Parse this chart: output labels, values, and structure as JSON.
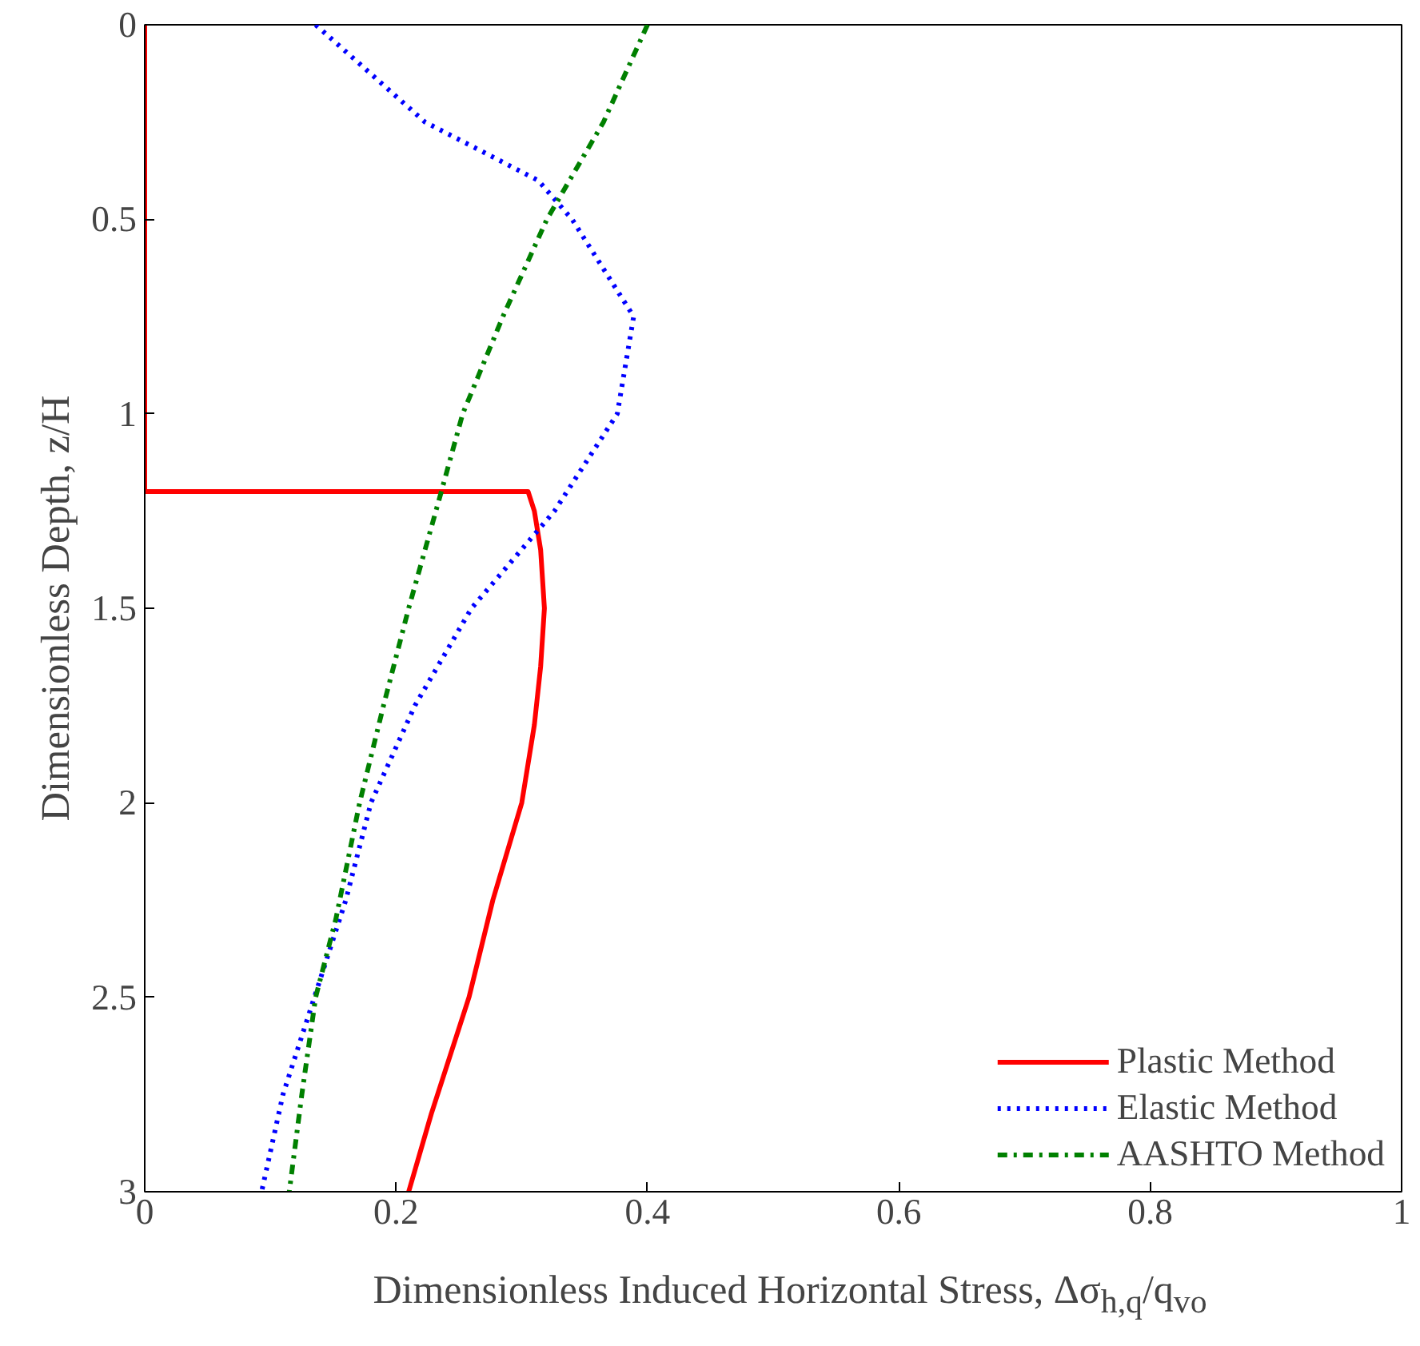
{
  "chart_data": {
    "type": "line",
    "xlabel": "Dimensionless Induced Horizontal Stress, Δσ$_{h,q}$/q$_{vo}$",
    "ylabel": "Dimensionless Depth, z/H",
    "xlim": [
      0,
      1
    ],
    "xticks": [
      0,
      0.2,
      0.4,
      0.6,
      0.8,
      1
    ],
    "ylim": [
      3,
      0
    ],
    "yticks": [
      0,
      0.5,
      1,
      1.5,
      2,
      2.5,
      3
    ],
    "legend": "bottom right",
    "grid": false,
    "series": [
      {
        "name": "Plastic Method",
        "color": "#ff0000",
        "line_style": "solid",
        "x": [
          0,
          0,
          0.305,
          0.31,
          0.315,
          0.318,
          0.315,
          0.31,
          0.3,
          0.277,
          0.258,
          0.228,
          0.21
        ],
        "values": [
          0,
          1.2,
          1.2,
          1.25,
          1.35,
          1.5,
          1.65,
          1.8,
          2.0,
          2.25,
          2.5,
          2.8,
          3.0
        ]
      },
      {
        "name": "Elastic Method",
        "color": "#0000ff",
        "line_style": "dotted",
        "x": [
          0.136,
          0.223,
          0.313,
          0.34,
          0.389,
          0.376,
          0.326,
          0.26,
          0.215,
          0.18,
          0.16,
          0.135,
          0.11,
          0.093
        ],
        "values": [
          0,
          0.25,
          0.4,
          0.5,
          0.75,
          1.0,
          1.25,
          1.5,
          1.75,
          2.0,
          2.25,
          2.5,
          2.75,
          3.0
        ]
      },
      {
        "name": "AASHTO Method",
        "color": "#008000",
        "line_style": "dashdot",
        "x": [
          0.4,
          0.365,
          0.32,
          0.285,
          0.253,
          0.236,
          0.21,
          0.19,
          0.171,
          0.152,
          0.136,
          0.125,
          0.115
        ],
        "values": [
          0,
          0.25,
          0.5,
          0.75,
          1.0,
          1.2,
          1.5,
          1.75,
          2.0,
          2.3,
          2.5,
          2.75,
          3.0
        ]
      }
    ]
  }
}
